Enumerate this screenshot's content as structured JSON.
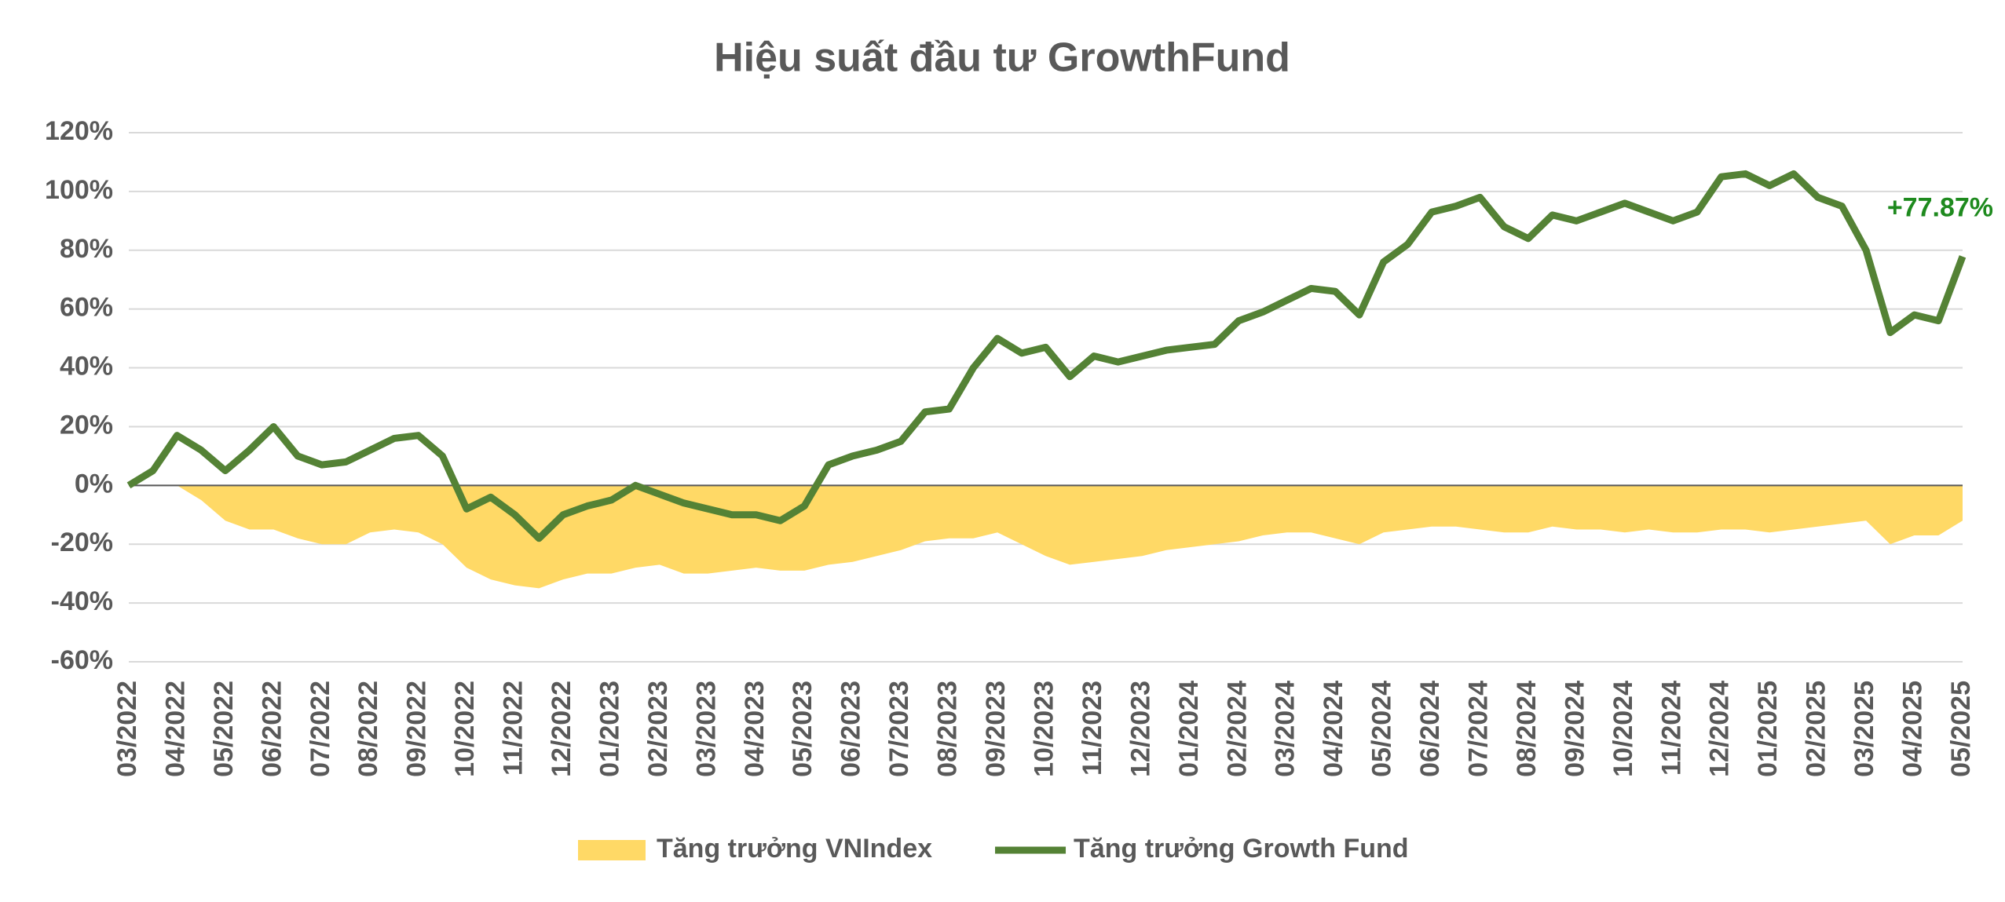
{
  "chart_data": {
    "type": "line",
    "title": "Hiệu suất đầu tư GrowthFund",
    "categories": [
      "03/2022",
      null,
      "04/2022",
      null,
      "05/2022",
      null,
      "06/2022",
      null,
      "07/2022",
      null,
      "08/2022",
      null,
      "09/2022",
      null,
      "10/2022",
      null,
      "11/2022",
      null,
      "12/2022",
      null,
      "01/2023",
      null,
      "02/2023",
      null,
      "03/2023",
      null,
      "04/2023",
      null,
      "05/2023",
      null,
      "06/2023",
      null,
      "07/2023",
      null,
      "08/2023",
      null,
      "09/2023",
      null,
      "10/2023",
      null,
      "11/2023",
      null,
      "12/2023",
      null,
      "01/2024",
      null,
      "02/2024",
      null,
      "03/2024",
      null,
      "04/2024",
      null,
      "05/2024",
      null,
      "06/2024",
      null,
      "07/2024",
      null,
      "08/2024",
      null,
      "09/2024",
      null,
      "10/2024",
      null,
      "11/2024",
      null,
      "12/2024",
      null,
      "01/2025",
      null,
      "02/2025",
      null,
      "03/2025",
      null,
      "04/2025",
      null,
      "05/2025"
    ],
    "series": [
      {
        "name": "Tăng trưởng VNIndex",
        "type": "area",
        "color": "#ffd966",
        "values": [
          0,
          0,
          0,
          -5,
          -12,
          -15,
          -15,
          -18,
          -20,
          -20,
          -16,
          -15,
          -16,
          -20,
          -28,
          -32,
          -34,
          -35,
          -32,
          -30,
          -30,
          -28,
          -27,
          -30,
          -30,
          -29,
          -28,
          -29,
          -29,
          -27,
          -26,
          -24,
          -22,
          -19,
          -18,
          -18,
          -16,
          -20,
          -24,
          -27,
          -26,
          -25,
          -24,
          -22,
          -21,
          -20,
          -19,
          -17,
          -16,
          -16,
          -18,
          -20,
          -16,
          -15,
          -14,
          -14,
          -15,
          -16,
          -16,
          -14,
          -15,
          -15,
          -16,
          -15,
          -16,
          -16,
          -15,
          -15,
          -16,
          -15,
          -14,
          -13,
          -12,
          -20,
          -17,
          -17,
          -12
        ]
      },
      {
        "name": "Tăng trưởng Growth Fund",
        "type": "line",
        "color": "#548235",
        "values": [
          0,
          5,
          17,
          12,
          5,
          12,
          20,
          10,
          7,
          8,
          12,
          16,
          17,
          10,
          -8,
          -4,
          -10,
          -18,
          -10,
          -7,
          -5,
          0,
          -3,
          -6,
          -8,
          -10,
          -10,
          -12,
          -7,
          7,
          10,
          12,
          15,
          25,
          26,
          40,
          50,
          45,
          47,
          37,
          44,
          42,
          44,
          46,
          47,
          48,
          56,
          59,
          63,
          67,
          66,
          58,
          76,
          82,
          93,
          95,
          98,
          88,
          84,
          92,
          90,
          93,
          96,
          93,
          90,
          93,
          105,
          106,
          102,
          106,
          98,
          95,
          80,
          52,
          58,
          56,
          77.87
        ]
      }
    ],
    "annotation": "+77.87%",
    "ylim": [
      -60,
      120
    ],
    "yticks": [
      {
        "value": -60,
        "label": "-60%"
      },
      {
        "value": -40,
        "label": "-40%"
      },
      {
        "value": -20,
        "label": "-20%"
      },
      {
        "value": 0,
        "label": "0%"
      },
      {
        "value": 20,
        "label": "20%"
      },
      {
        "value": 40,
        "label": "40%"
      },
      {
        "value": 60,
        "label": "60%"
      },
      {
        "value": 80,
        "label": "80%"
      },
      {
        "value": 100,
        "label": "100%"
      },
      {
        "value": 120,
        "label": "120%"
      }
    ],
    "grid": true,
    "legend": "bottom"
  }
}
